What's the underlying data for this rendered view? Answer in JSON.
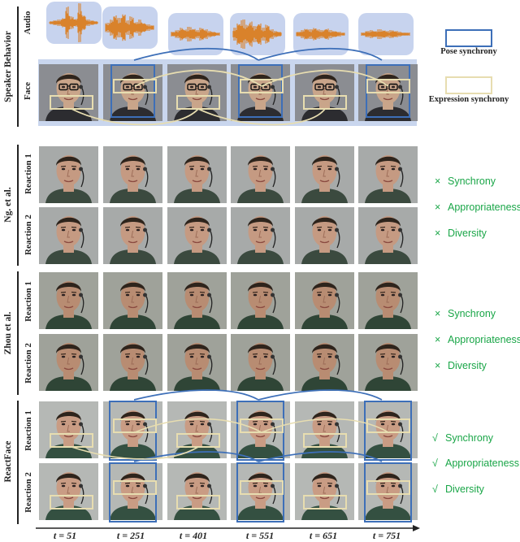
{
  "speaker": {
    "group_label": "Speaker Behavior",
    "audio_label": "Audio",
    "face_label": "Face"
  },
  "legend": {
    "pose_label": "Pose synchrony",
    "expression_label": "Expression synchrony",
    "pose_color": "#3d6fb8",
    "expression_color": "#e7ddb0"
  },
  "methods": [
    {
      "name": "Ng. et al.",
      "reactions": [
        "Reaction 1",
        "Reaction 2"
      ],
      "metrics": [
        {
          "mark": "×",
          "label": "Synchrony"
        },
        {
          "mark": "×",
          "label": "Appropriateness"
        },
        {
          "mark": "×",
          "label": "Diversity"
        }
      ]
    },
    {
      "name": "Zhou et al.",
      "reactions": [
        "Reaction 1",
        "Reaction 2"
      ],
      "metrics": [
        {
          "mark": "×",
          "label": "Synchrony"
        },
        {
          "mark": "×",
          "label": "Appropriateness"
        },
        {
          "mark": "×",
          "label": "Diversity"
        }
      ]
    },
    {
      "name": "ReactFace",
      "reactions": [
        "Reaction 1",
        "Reaction 2"
      ],
      "metrics": [
        {
          "mark": "√",
          "label": "Synchrony"
        },
        {
          "mark": "√",
          "label": "Appropriateness"
        },
        {
          "mark": "√",
          "label": "Diversity"
        }
      ]
    }
  ],
  "timeline": {
    "labels": [
      "t = 51",
      "t = 251",
      "t = 401",
      "t = 551",
      "t = 651",
      "t = 751"
    ]
  },
  "colors": {
    "metric_green": "#1aa648",
    "audio_bg": "#c7d3ee",
    "waveform": "#d9822b",
    "face_panel_bg": "#c9d6ee"
  }
}
